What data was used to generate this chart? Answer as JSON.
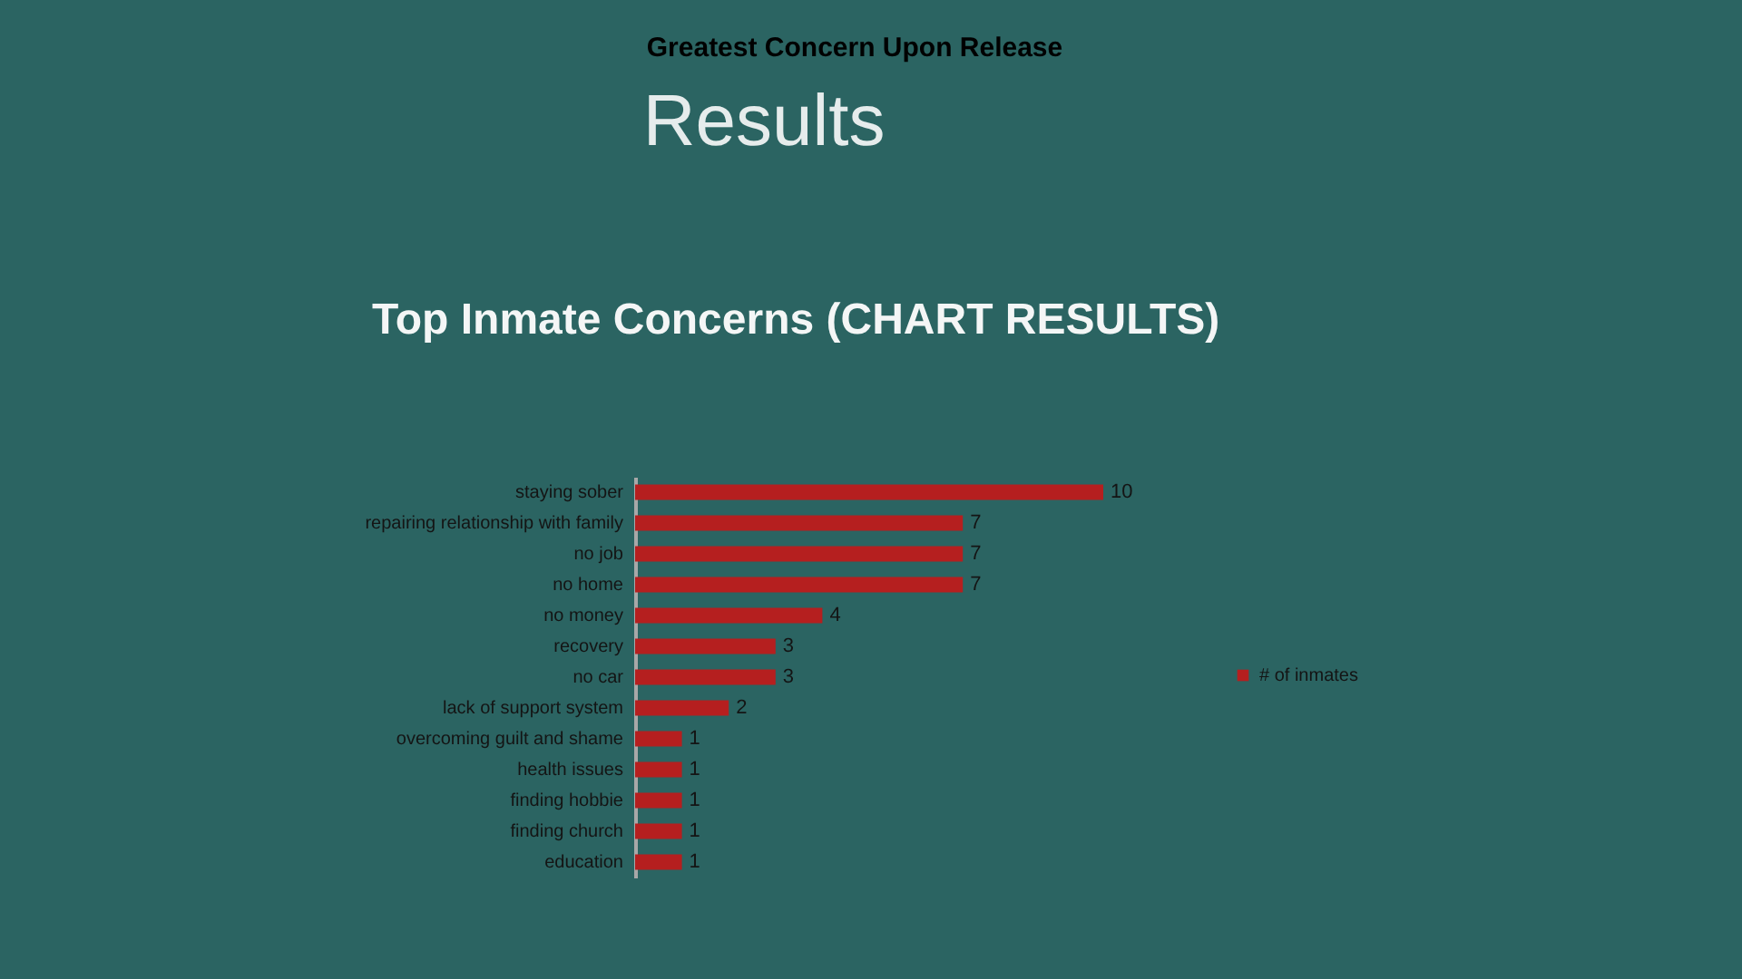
{
  "chart_data": {
    "type": "bar",
    "orientation": "horizontal",
    "title": "Greatest Concern Upon Release",
    "annotations": [
      "Results",
      "Top Inmate Concerns (CHART RESULTS)"
    ],
    "categories": [
      "staying sober",
      "repairing relationship with family",
      "no job",
      "no home",
      "no money",
      "recovery",
      "no car",
      "lack of support system",
      "overcoming guilt and shame",
      "health issues",
      "finding hobbie",
      "finding church",
      "education"
    ],
    "series": [
      {
        "name": "# of inmates",
        "color": "#b51f1f",
        "values": [
          10,
          7,
          7,
          7,
          4,
          3,
          3,
          2,
          1,
          1,
          1,
          1,
          1
        ]
      }
    ],
    "data_labels": true,
    "legend": "right"
  }
}
